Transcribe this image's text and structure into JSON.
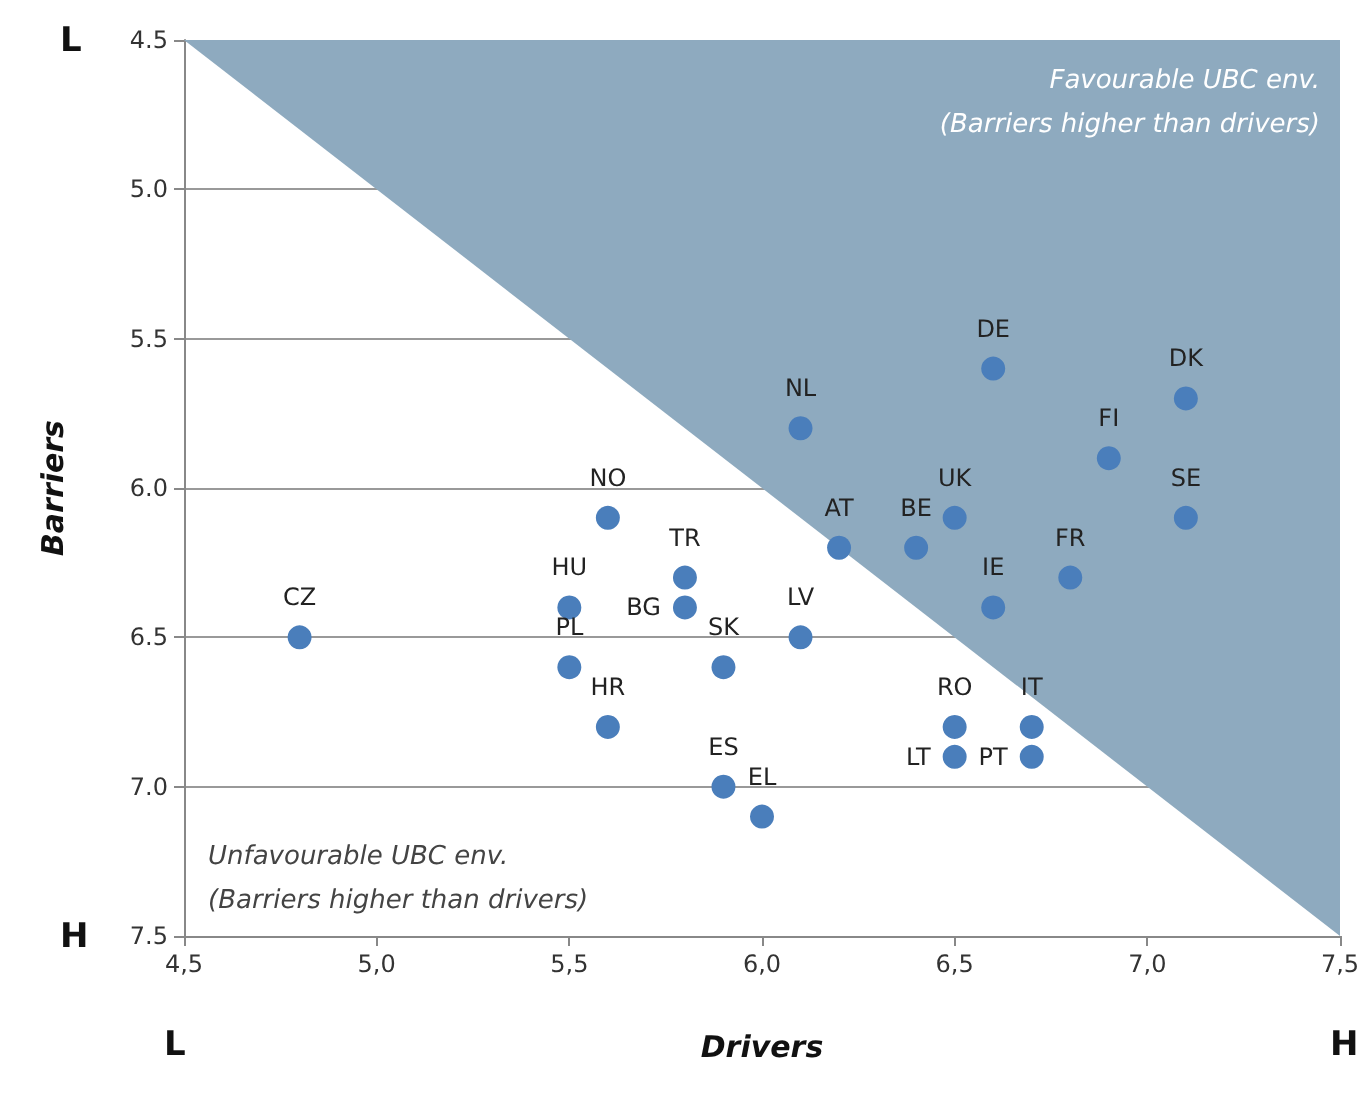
{
  "chart_data": {
    "type": "scatter",
    "xlabel": "Drivers",
    "ylabel": "Barriers",
    "xlim": [
      4.5,
      7.5
    ],
    "xticks": [
      {
        "value": 4.5,
        "label": "4,5"
      },
      {
        "value": 5,
        "label": "5,0"
      },
      {
        "value": 5.5,
        "label": "5,5"
      },
      {
        "value": 6,
        "label": "6,0"
      },
      {
        "value": 6.5,
        "label": "6,5"
      },
      {
        "value": 7,
        "label": "7,0"
      },
      {
        "value": 7.5,
        "label": "7,5"
      }
    ],
    "ylim": [
      7.5,
      4.5
    ],
    "yticks": [
      {
        "value": 4.5,
        "label": "4.5"
      },
      {
        "value": 5,
        "label": "5.0"
      },
      {
        "value": 5.5,
        "label": "5.5"
      },
      {
        "value": 6,
        "label": "6.0"
      },
      {
        "value": 6.5,
        "label": "6.5"
      },
      {
        "value": 7,
        "label": "7.0"
      },
      {
        "value": 7.5,
        "label": "7.5"
      }
    ],
    "grid": "y",
    "series": [
      {
        "type": "area",
        "marker": "none",
        "color": "#8eaabf",
        "x": [
          4.5,
          7.5
        ],
        "values": [
          4.5,
          7.5
        ]
      },
      {
        "marker": "circle",
        "color": "#4a7ebb",
        "x": [
          4.8,
          5.6,
          5.5,
          5.5,
          5.6,
          5.8,
          5.8,
          5.9,
          5.9,
          6.0,
          6.1,
          6.1,
          6.2,
          6.4,
          6.5,
          6.6,
          6.6,
          6.8,
          6.9,
          7.1,
          7.1,
          6.5,
          6.5,
          6.7,
          6.7
        ],
        "values": [
          6.5,
          6.1,
          6.4,
          6.6,
          6.8,
          6.3,
          6.4,
          6.6,
          7.0,
          7.1,
          6.5,
          5.8,
          6.2,
          6.2,
          6.1,
          5.6,
          6.4,
          6.3,
          5.9,
          5.7,
          6.1,
          6.8,
          6.9,
          6.8,
          6.9
        ],
        "value_labels": [
          "CZ",
          "NO",
          "HU",
          "PL",
          "HR",
          "TR",
          "BG",
          "SK",
          "ES",
          "EL",
          "LV",
          "NL",
          "AT",
          "BE",
          "UK",
          "DE",
          "IE",
          "FR",
          "FI",
          "DK",
          "SE",
          "RO",
          "LT",
          "IT",
          "PT"
        ]
      }
    ],
    "annotations": [
      "Favourable UBC env.",
      "(Barriers higher than drivers)",
      "Unfavourable UBC env.",
      "(Barriers higher than drivers)",
      "L",
      "H",
      "L",
      "H"
    ]
  }
}
